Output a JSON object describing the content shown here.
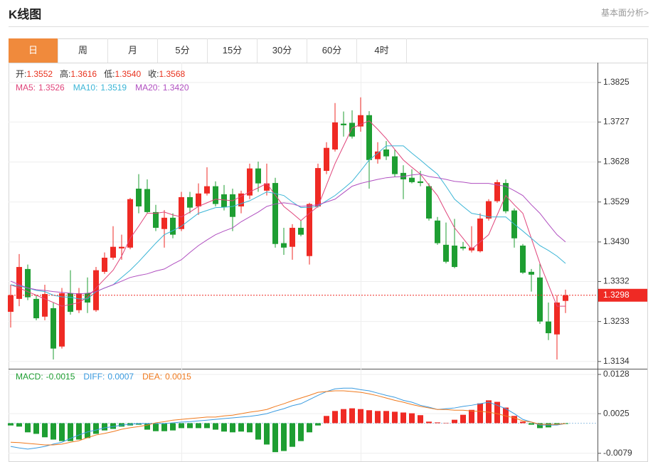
{
  "header": {
    "title": "K线图",
    "link": "基本面分析>"
  },
  "tabs": [
    "日",
    "周",
    "月",
    "5分",
    "15分",
    "30分",
    "60分",
    "4时"
  ],
  "chart_data": [
    {
      "type": "candlestick",
      "info": [
        {
          "label": "开:",
          "value": 1.3552
        },
        {
          "label": "高:",
          "value": 1.3616
        },
        {
          "label": "低:",
          "value": {
            "value": 1.354,
            "label": "1.3540"
          }
        },
        {
          "label": "收:",
          "value": 1.3568
        }
      ],
      "info_value_color": "#e8321e",
      "up_color": "#ef2a24",
      "down_color": "#1e9e32",
      "open": [
        1.3257,
        1.3289,
        1.3363,
        1.3289,
        1.3245,
        1.3266,
        1.3171,
        1.3303,
        1.3261,
        1.3303,
        1.3261,
        1.3356,
        1.3391,
        1.3414,
        1.3416,
        1.3562,
        1.3561,
        1.3504,
        1.3462,
        1.349,
        1.3462,
        1.3541,
        1.3518,
        1.355,
        1.3568,
        1.3548,
        1.3548,
        1.3518,
        1.3545,
        1.3612,
        1.3557,
        1.3576,
        1.3427,
        1.3418,
        1.3465,
        1.3395,
        1.3518,
        1.3606,
        1.3659,
        1.3723,
        1.3725,
        1.3716,
        1.3744,
        1.3635,
        1.3659,
        1.3642,
        1.3601,
        1.3589,
        1.358,
        1.3568,
        1.3483,
        1.3423,
        1.3421,
        1.3418,
        1.3409,
        1.3407,
        1.3488,
        1.3531,
        1.3576,
        1.3508,
        1.3421,
        1.3356,
        1.3342,
        1.3233,
        1.3201,
        1.3284
      ],
      "high": [
        1.3324,
        1.34,
        1.3374,
        1.3298,
        1.3324,
        1.328,
        1.3316,
        1.336,
        1.3316,
        1.3342,
        1.3368,
        1.3404,
        1.3469,
        1.3448,
        1.3539,
        1.3598,
        1.3585,
        1.3522,
        1.3509,
        1.3501,
        1.3554,
        1.3554,
        1.3575,
        1.3615,
        1.358,
        1.3571,
        1.3562,
        1.3557,
        1.3624,
        1.3629,
        1.3624,
        1.3589,
        1.3465,
        1.3474,
        1.3483,
        1.3527,
        1.3624,
        1.3677,
        1.3774,
        1.3753,
        1.3756,
        1.3788,
        1.3754,
        1.3677,
        1.368,
        1.3659,
        1.362,
        1.361,
        1.3606,
        1.3575,
        1.3492,
        1.3478,
        1.3487,
        1.343,
        1.3469,
        1.3501,
        1.3536,
        1.3584,
        1.3585,
        1.3513,
        1.3425,
        1.3363,
        1.3377,
        1.328,
        1.3298,
        1.3312
      ],
      "low": [
        1.3218,
        1.3271,
        1.3286,
        1.3236,
        1.3236,
        1.3139,
        1.3166,
        1.325,
        1.3254,
        1.3254,
        1.3257,
        1.3351,
        1.3386,
        1.3386,
        1.3412,
        1.3501,
        1.3501,
        1.3457,
        1.3416,
        1.3439,
        1.3457,
        1.3501,
        1.3497,
        1.3545,
        1.3518,
        1.3508,
        1.3457,
        1.3501,
        1.3536,
        1.3554,
        1.3545,
        1.3416,
        1.3398,
        1.3386,
        1.3444,
        1.3374,
        1.3515,
        1.3598,
        1.3654,
        1.3691,
        1.3686,
        1.3703,
        1.3562,
        1.3624,
        1.3633,
        1.3592,
        1.3536,
        1.3575,
        1.3568,
        1.3483,
        1.3423,
        1.3377,
        1.3365,
        1.3409,
        1.3404,
        1.3404,
        1.3483,
        1.3527,
        1.3501,
        1.3416,
        1.3351,
        1.3307,
        1.3227,
        1.3187,
        1.3139,
        1.3254
      ],
      "close": [
        1.3298,
        1.3368,
        1.3293,
        1.3241,
        1.3301,
        1.3166,
        1.3303,
        1.3257,
        1.3303,
        1.328,
        1.336,
        1.3391,
        1.3418,
        1.3418,
        1.3536,
        1.3518,
        1.3504,
        1.3465,
        1.349,
        1.3448,
        1.3541,
        1.3515,
        1.355,
        1.3568,
        1.3524,
        1.3516,
        1.3492,
        1.355,
        1.3612,
        1.3575,
        1.3575,
        1.3425,
        1.3416,
        1.3465,
        1.3448,
        1.3524,
        1.3613,
        1.3663,
        1.3726,
        1.3719,
        1.3691,
        1.3744,
        1.3633,
        1.3654,
        1.3642,
        1.3598,
        1.3585,
        1.3578,
        1.3576,
        1.3488,
        1.3427,
        1.3381,
        1.3368,
        1.3414,
        1.3416,
        1.3488,
        1.3531,
        1.3578,
        1.3506,
        1.3439,
        1.3354,
        1.3349,
        1.3233,
        1.3204,
        1.328,
        1.3298
      ],
      "series": [
        {
          "name": "MA5:",
          "current": 1.3526,
          "color": "#e0457b",
          "values": [
            1.3324,
            1.3316,
            1.3307,
            1.3298,
            1.3289,
            1.328,
            1.3271,
            1.3275,
            1.328,
            1.3293,
            1.3316,
            1.3338,
            1.336,
            1.3395,
            1.3439,
            1.3469,
            1.3501,
            1.3501,
            1.3504,
            1.3497,
            1.3492,
            1.3504,
            1.3518,
            1.3527,
            1.3536,
            1.3534,
            1.3532,
            1.3543,
            1.3554,
            1.3564,
            1.3575,
            1.3546,
            1.3518,
            1.3501,
            1.3483,
            1.3501,
            1.3518,
            1.3571,
            1.3624,
            1.3668,
            1.3712,
            1.3721,
            1.373,
            1.3709,
            1.3686,
            1.3659,
            1.3633,
            1.3615,
            1.3598,
            1.3571,
            1.3545,
            1.3504,
            1.3465,
            1.3439,
            1.3412,
            1.343,
            1.3448,
            1.3497,
            1.3545,
            1.3522,
            1.3501,
            1.3439,
            1.3377,
            1.3324,
            1.3271,
            1.3271
          ]
        },
        {
          "name": "MA10:",
          "current": 1.3519,
          "color": "#3bb5d6",
          "values": [
            1.3324,
            1.3321,
            1.3316,
            1.331,
            1.3307,
            1.3298,
            1.3294,
            1.3293,
            1.3289,
            1.3289,
            1.3307,
            1.3316,
            1.3324,
            1.3342,
            1.336,
            1.3381,
            1.3404,
            1.3427,
            1.3448,
            1.3458,
            1.3469,
            1.3485,
            1.3501,
            1.3508,
            1.3515,
            1.3516,
            1.3518,
            1.3525,
            1.3532,
            1.3543,
            1.3554,
            1.355,
            1.3545,
            1.3529,
            1.3515,
            1.3516,
            1.3518,
            1.3532,
            1.3545,
            1.3562,
            1.358,
            1.3606,
            1.3633,
            1.365,
            1.3668,
            1.3668,
            1.3668,
            1.365,
            1.3633,
            1.3615,
            1.3598,
            1.3568,
            1.3536,
            1.3518,
            1.3501,
            1.3497,
            1.3492,
            1.3492,
            1.3492,
            1.3474,
            1.3457,
            1.3439,
            1.3421,
            1.3409,
            1.3395,
            1.3377
          ]
        },
        {
          "name": "MA20:",
          "current": {
            "value": 1.342,
            "label": "1.3420"
          },
          "color": "#b04fc0",
          "values": [
            1.3333,
            1.3324,
            1.3316,
            1.3312,
            1.331,
            1.3307,
            1.3305,
            1.3303,
            1.3301,
            1.3303,
            1.3307,
            1.3316,
            1.3324,
            1.3333,
            1.3342,
            1.3347,
            1.3351,
            1.3358,
            1.3363,
            1.3375,
            1.3386,
            1.3404,
            1.3421,
            1.3435,
            1.3448,
            1.3457,
            1.3465,
            1.348,
            1.3492,
            1.3504,
            1.3518,
            1.3524,
            1.3527,
            1.3524,
            1.3518,
            1.352,
            1.3522,
            1.3529,
            1.3536,
            1.3552,
            1.3568,
            1.3575,
            1.358,
            1.3585,
            1.3589,
            1.3591,
            1.3592,
            1.3596,
            1.3598,
            1.3592,
            1.3589,
            1.3585,
            1.358,
            1.3578,
            1.3575,
            1.3575,
            1.3575,
            1.3571,
            1.3568,
            1.3557,
            1.3545,
            1.3522,
            1.3501,
            1.3474,
            1.3448,
            1.343
          ]
        }
      ],
      "ylim": [
        1.3116,
        1.3867
      ],
      "yticks": [
        1.3825,
        1.3727,
        1.3628,
        1.3529,
        {
          "value": 1.343,
          "label": "1.3430"
        },
        1.3332,
        1.3233,
        1.3134
      ],
      "grid": true,
      "last_price": 1.3298,
      "last_price_color": "#ef2a24"
    },
    {
      "type": "macd",
      "info": [
        {
          "name": "MACD:",
          "current": -0.0015,
          "color": "#1e9e32"
        },
        {
          "name": "DIFF:",
          "current": 0.0007,
          "color": "#3a9be0"
        },
        {
          "name": "DEA:",
          "current": 0.0015,
          "color": "#f07a1e"
        }
      ],
      "up_color": "#ef2a24",
      "down_color": "#1e9e32",
      "histogram": [
        -0.0006,
        -0.0009,
        -0.0024,
        -0.0028,
        -0.0037,
        -0.0043,
        -0.0047,
        -0.0047,
        -0.0043,
        -0.0039,
        -0.0028,
        -0.0019,
        -0.0015,
        -0.0009,
        -0.0006,
        -0.0004,
        -0.0017,
        -0.0021,
        -0.0021,
        -0.0019,
        -0.0013,
        -0.0013,
        -0.0013,
        -0.0013,
        -0.0017,
        -0.0022,
        -0.0024,
        -0.0022,
        -0.0024,
        -0.0043,
        -0.0056,
        -0.0076,
        -0.0073,
        -0.0062,
        -0.0047,
        -0.0024,
        -0.0006,
        0.0019,
        0.0032,
        0.0037,
        0.0039,
        0.0037,
        0.0034,
        0.0032,
        0.0032,
        0.003,
        0.0028,
        0.0026,
        0.0021,
        0.0004,
        0.0002,
        0.0001,
        0.0009,
        0.0022,
        0.0035,
        0.0052,
        0.006,
        0.0056,
        0.0041,
        0.0019,
        0.0004,
        -0.0004,
        -0.0013,
        -0.0011,
        -0.0004,
        -0.0002
      ],
      "series": [
        {
          "name": "DIFF",
          "color": "#3a9be0",
          "values": [
            -0.0061,
            -0.0065,
            -0.0068,
            -0.0065,
            -0.0061,
            -0.0055,
            -0.005,
            -0.004,
            -0.0031,
            -0.0023,
            -0.0018,
            -0.0012,
            -0.0009,
            -0.0005,
            -0.0003,
            -0.0001,
            -0.0001,
            -0.0001,
            -0.0001,
            0.0001,
            0.0003,
            0.0004,
            0.0006,
            0.0008,
            0.001,
            0.0012,
            0.0014,
            0.0016,
            0.0018,
            0.0021,
            0.0025,
            0.0032,
            0.0038,
            0.0046,
            0.0051,
            0.0062,
            0.0073,
            0.0083,
            0.009,
            0.0092,
            0.0092,
            0.0088,
            0.0085,
            0.0079,
            0.0073,
            0.0068,
            0.006,
            0.0055,
            0.0047,
            0.0042,
            0.0036,
            0.0038,
            0.004,
            0.0044,
            0.0047,
            0.0051,
            0.0055,
            0.0047,
            0.0038,
            0.0025,
            0.001,
            0.0003,
            -0.0005,
            -0.0005,
            -0.0005,
            -0.0001
          ]
        },
        {
          "name": "DEA",
          "color": "#f07a1e",
          "values": [
            -0.005,
            -0.0051,
            -0.0053,
            -0.0055,
            -0.0057,
            -0.0057,
            -0.0055,
            -0.005,
            -0.0046,
            -0.0038,
            -0.0031,
            -0.0027,
            -0.0022,
            -0.0016,
            -0.0012,
            -0.0009,
            -0.0005,
            0.0001,
            0.0004,
            0.0008,
            0.001,
            0.0012,
            0.0014,
            0.0016,
            0.0016,
            0.0019,
            0.0021,
            0.0025,
            0.0029,
            0.0032,
            0.0036,
            0.0044,
            0.0051,
            0.0059,
            0.0066,
            0.0073,
            0.0081,
            0.0083,
            0.0085,
            0.0085,
            0.0083,
            0.0081,
            0.0077,
            0.0072,
            0.0066,
            0.006,
            0.0055,
            0.0049,
            0.0044,
            0.004,
            0.0036,
            0.0036,
            0.0034,
            0.0034,
            0.0032,
            0.0031,
            0.0029,
            0.0025,
            0.0019,
            0.0014,
            0.0006,
            0.0003,
            -0.0003,
            -0.0003,
            -0.0003,
            -0.0001
          ]
        }
      ],
      "ylim": [
        -0.01,
        0.0141
      ],
      "yticks": [
        0.0128,
        0.0025,
        -0.0079
      ],
      "grid": true
    }
  ]
}
